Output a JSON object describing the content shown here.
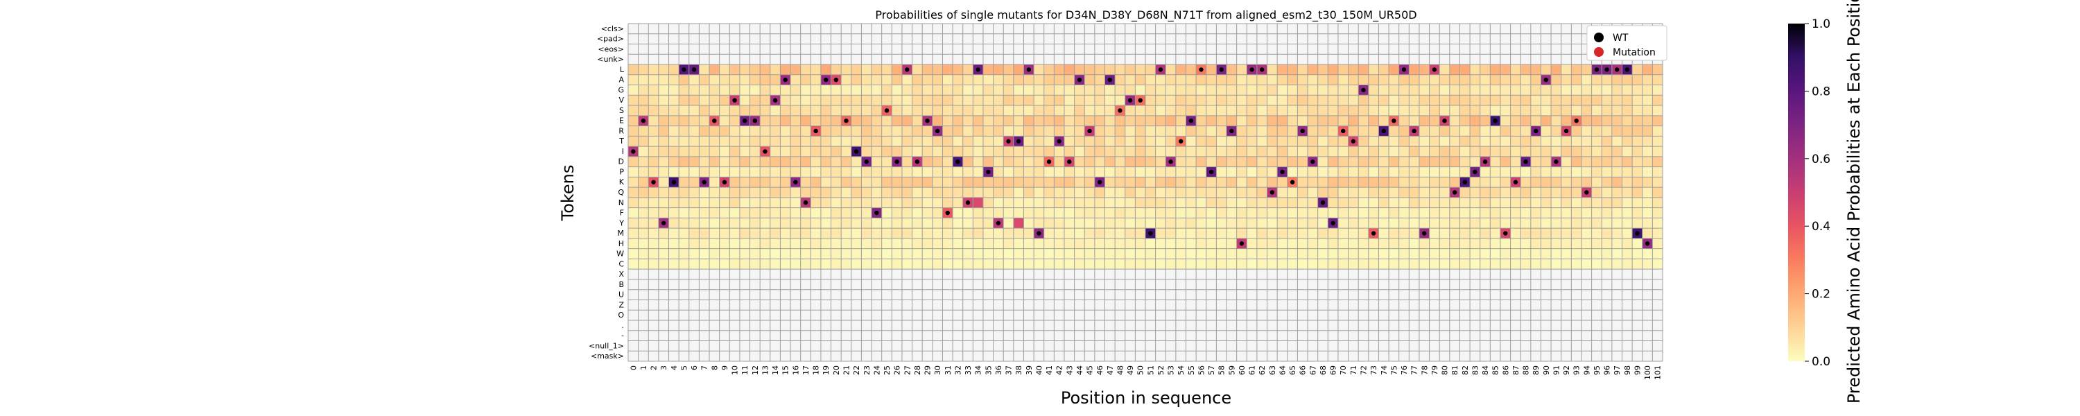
{
  "chart_data": {
    "type": "heatmap",
    "title": "Probabilities of single mutants for D34N_D38Y_D68N_N71T from aligned_esm2_t30_150M_UR50D",
    "xlabel": "Position in sequence",
    "ylabel": "Tokens",
    "colorbar_label": "Predicted Amino Acid Probabilities at Each Position",
    "colormap": "magma_r",
    "vmin": 0.0,
    "vmax": 1.0,
    "colorbar_ticks": [
      "0.0",
      "0.2",
      "0.4",
      "0.6",
      "0.8",
      "1.0"
    ],
    "x_positions": [
      0,
      101
    ],
    "tokens": [
      "<cls>",
      "<pad>",
      "<eos>",
      "<unk>",
      "L",
      "A",
      "G",
      "V",
      "S",
      "E",
      "R",
      "T",
      "I",
      "D",
      "P",
      "K",
      "Q",
      "N",
      "F",
      "Y",
      "M",
      "H",
      "W",
      "C",
      "X",
      "B",
      "U",
      "Z",
      "O",
      ".",
      "-",
      "<null_1>",
      "<mask>"
    ],
    "legend": [
      {
        "label": "WT",
        "color": "#000000"
      },
      {
        "label": "Mutation",
        "color": "#d62728"
      }
    ],
    "wt_tokens": [
      "I",
      "E",
      "K",
      "Y",
      "K",
      "L",
      "L",
      "K",
      "E",
      "K",
      "V",
      "E",
      "E",
      "I",
      "V",
      "A",
      "K",
      "N",
      "R",
      "A",
      "A",
      "E",
      "I",
      "D",
      "F",
      "S",
      "D",
      "L",
      "D",
      "E",
      "R",
      "F",
      "D",
      "N",
      "L",
      "P",
      "Y",
      "T",
      "T",
      "L",
      "M",
      "D",
      "T",
      "D",
      "A",
      "R",
      "K",
      "A",
      "S",
      "V",
      "V",
      "M",
      "L",
      "D",
      "T",
      "E",
      "L",
      "P",
      "L",
      "R",
      "H",
      "L",
      "L",
      "Q",
      "P",
      "K",
      "R",
      "D",
      "N",
      "Y",
      "R",
      "T",
      "G",
      "M",
      "R",
      "E",
      "L",
      "R",
      "M",
      "L",
      "E",
      "Q",
      "K",
      "P",
      "D",
      "E",
      "M",
      "K",
      "D",
      "R",
      "A",
      "D",
      "R",
      "E",
      "Q",
      "L",
      "L",
      "L",
      "L",
      "M",
      "H"
    ],
    "mutations": [
      {
        "position": 34,
        "token": "N"
      },
      {
        "position": 38,
        "token": "Y"
      },
      {
        "position": 68,
        "token": "N"
      },
      {
        "position": 71,
        "token": "T"
      }
    ]
  }
}
